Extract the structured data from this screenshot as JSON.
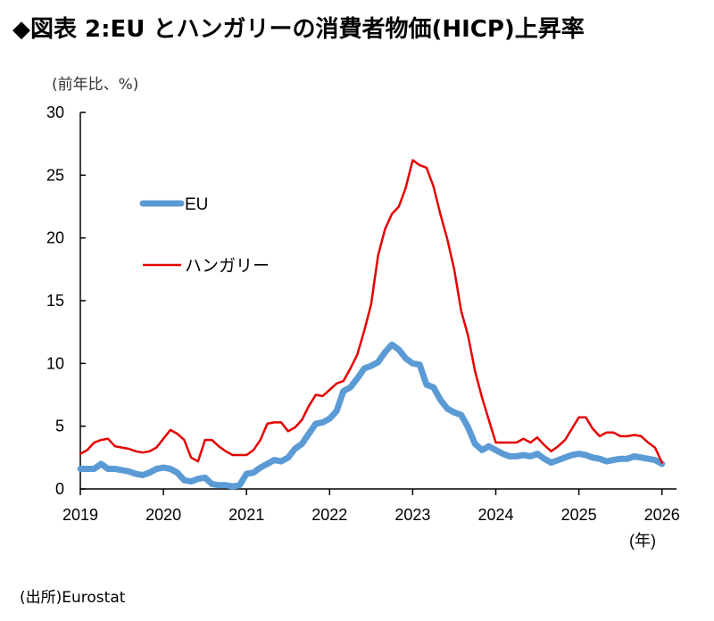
{
  "title": "◆図表 2:EU とハンガリーの消費者物価(HICP)上昇率",
  "source": "(出所)Eurostat",
  "chart_data": {
    "type": "line",
    "ylabel": "(前年比、%)",
    "xlabel": "(年)",
    "ylim": [
      0,
      30
    ],
    "yticks": [
      "0",
      "5",
      "10",
      "15",
      "20",
      "25",
      "30"
    ],
    "xticks": [
      "2019",
      "2020",
      "2021",
      "2022",
      "2023",
      "2024",
      "2025",
      "2026"
    ],
    "x_start": "2019-01",
    "x_end": "2026-01",
    "frequency": "monthly",
    "grid": false,
    "legend": "left",
    "series": [
      {
        "name": "EU",
        "color": "#5b9bd5",
        "values": [
          1.6,
          1.6,
          1.6,
          2.0,
          1.6,
          1.6,
          1.5,
          1.4,
          1.2,
          1.1,
          1.3,
          1.6,
          1.7,
          1.6,
          1.3,
          0.7,
          0.6,
          0.8,
          0.9,
          0.4,
          0.3,
          0.3,
          0.2,
          0.3,
          1.2,
          1.3,
          1.7,
          2.0,
          2.3,
          2.2,
          2.5,
          3.2,
          3.6,
          4.4,
          5.2,
          5.3,
          5.6,
          6.2,
          7.8,
          8.1,
          8.8,
          9.6,
          9.8,
          10.1,
          10.9,
          11.5,
          11.1,
          10.4,
          10.0,
          9.9,
          8.3,
          8.1,
          7.1,
          6.4,
          6.1,
          5.9,
          4.9,
          3.6,
          3.1,
          3.4,
          3.1,
          2.8,
          2.6,
          2.6,
          2.7,
          2.6,
          2.8,
          2.4,
          2.1,
          2.3,
          2.5,
          2.7,
          2.8,
          2.7,
          2.5,
          2.4,
          2.2,
          2.3,
          2.4,
          2.4,
          2.6,
          2.5,
          2.4,
          2.3,
          2.0
        ]
      },
      {
        "name": "ハンガリー",
        "color": "#e60000",
        "values": [
          2.8,
          3.1,
          3.7,
          3.9,
          4.0,
          3.4,
          3.3,
          3.2,
          3.0,
          2.9,
          3.0,
          3.3,
          4.0,
          4.7,
          4.4,
          3.9,
          2.5,
          2.2,
          3.9,
          3.9,
          3.4,
          3.0,
          2.7,
          2.7,
          2.7,
          3.1,
          3.9,
          5.2,
          5.3,
          5.3,
          4.6,
          4.9,
          5.5,
          6.6,
          7.5,
          7.4,
          7.9,
          8.4,
          8.6,
          9.6,
          10.7,
          12.6,
          14.7,
          18.6,
          20.7,
          21.9,
          22.5,
          24.0,
          26.2,
          25.8,
          25.6,
          24.1,
          21.9,
          19.9,
          17.5,
          14.2,
          12.2,
          9.4,
          7.3,
          5.5,
          3.7,
          3.7,
          3.7,
          3.7,
          4.0,
          3.7,
          4.1,
          3.5,
          3.0,
          3.4,
          3.9,
          4.8,
          5.7,
          5.7,
          4.8,
          4.2,
          4.5,
          4.5,
          4.2,
          4.2,
          4.3,
          4.2,
          3.7,
          3.3,
          2.1
        ]
      }
    ]
  }
}
